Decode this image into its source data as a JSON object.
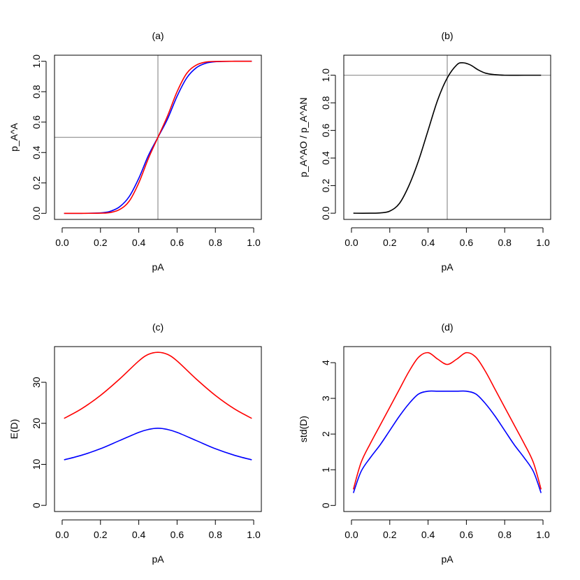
{
  "chart_data": [
    {
      "panel": "a",
      "type": "line",
      "title": "(a)",
      "xlabel": "pA",
      "ylabel": "p_A^A",
      "xlim": [
        -0.04,
        1.04
      ],
      "ylim": [
        -0.04,
        1.04
      ],
      "xticks": [
        "0.0",
        "0.2",
        "0.4",
        "0.6",
        "0.8",
        "1.0"
      ],
      "yticks": [
        "0.0",
        "0.2",
        "0.4",
        "0.6",
        "0.8",
        "1.0"
      ],
      "ref_lines": {
        "v": 0.5,
        "h": 0.5,
        "color": "#999999"
      },
      "series": [
        {
          "color": "#0000ff",
          "x": [
            0.01,
            0.1,
            0.2,
            0.25,
            0.3,
            0.35,
            0.4,
            0.45,
            0.5,
            0.55,
            0.6,
            0.65,
            0.7,
            0.75,
            0.8,
            0.9,
            0.99
          ],
          "y": [
            0.0,
            0.0,
            0.003,
            0.013,
            0.043,
            0.11,
            0.23,
            0.38,
            0.5,
            0.62,
            0.77,
            0.89,
            0.957,
            0.987,
            0.997,
            1.0,
            1.0
          ]
        },
        {
          "color": "#ff0000",
          "x": [
            0.01,
            0.1,
            0.2,
            0.25,
            0.3,
            0.35,
            0.4,
            0.45,
            0.5,
            0.55,
            0.6,
            0.65,
            0.7,
            0.75,
            0.8,
            0.9,
            0.99
          ],
          "y": [
            0.0,
            0.0,
            0.001,
            0.005,
            0.025,
            0.08,
            0.2,
            0.36,
            0.5,
            0.64,
            0.8,
            0.92,
            0.975,
            0.995,
            0.999,
            1.0,
            1.0
          ]
        }
      ]
    },
    {
      "panel": "b",
      "type": "line",
      "title": "(b)",
      "xlabel": "pA",
      "ylabel": "p_A^AO / p_A^AN",
      "xlim": [
        -0.04,
        1.04
      ],
      "ylim": [
        -0.045,
        1.145
      ],
      "xticks": [
        "0.0",
        "0.2",
        "0.4",
        "0.6",
        "0.8",
        "1.0"
      ],
      "yticks": [
        "0.0",
        "0.2",
        "0.4",
        "0.6",
        "0.8",
        "1.0"
      ],
      "ref_lines": {
        "v": 0.5,
        "h": 1.0,
        "color": "#999999"
      },
      "series": [
        {
          "color": "#000000",
          "x": [
            0.01,
            0.1,
            0.15,
            0.2,
            0.25,
            0.3,
            0.35,
            0.4,
            0.45,
            0.5,
            0.55,
            0.58,
            0.62,
            0.66,
            0.7,
            0.75,
            0.8,
            0.9,
            0.99
          ],
          "y": [
            0.0,
            0.0,
            0.002,
            0.015,
            0.07,
            0.2,
            0.38,
            0.6,
            0.82,
            0.98,
            1.075,
            1.09,
            1.075,
            1.04,
            1.015,
            1.004,
            1.0,
            1.0,
            1.0
          ]
        }
      ]
    },
    {
      "panel": "c",
      "type": "line",
      "title": "(c)",
      "xlabel": "pA",
      "ylabel": "E(D)",
      "xlim": [
        -0.04,
        1.04
      ],
      "ylim": [
        -1.5,
        38.7
      ],
      "xticks": [
        "0.0",
        "0.2",
        "0.4",
        "0.6",
        "0.8",
        "1.0"
      ],
      "yticks": [
        "0",
        "10",
        "20",
        "30"
      ],
      "series": [
        {
          "color": "#ff0000",
          "x": [
            0.01,
            0.1,
            0.2,
            0.3,
            0.4,
            0.45,
            0.5,
            0.55,
            0.6,
            0.7,
            0.8,
            0.9,
            0.99
          ],
          "y": [
            21.2,
            23.5,
            26.8,
            30.8,
            35.2,
            36.8,
            37.3,
            36.8,
            35.2,
            30.8,
            26.8,
            23.5,
            21.2
          ]
        },
        {
          "color": "#0000ff",
          "x": [
            0.01,
            0.1,
            0.2,
            0.3,
            0.4,
            0.45,
            0.5,
            0.55,
            0.6,
            0.7,
            0.8,
            0.9,
            0.99
          ],
          "y": [
            11.1,
            12.2,
            13.8,
            15.8,
            17.8,
            18.5,
            18.8,
            18.5,
            17.8,
            15.8,
            13.8,
            12.2,
            11.1
          ]
        }
      ]
    },
    {
      "panel": "d",
      "type": "line",
      "title": "(d)",
      "xlabel": "pA",
      "ylabel": "std(D)",
      "xlim": [
        -0.04,
        1.04
      ],
      "ylim": [
        -0.17,
        4.45
      ],
      "xticks": [
        "0.0",
        "0.2",
        "0.4",
        "0.6",
        "0.8",
        "1.0"
      ],
      "yticks": [
        "0",
        "1",
        "2",
        "3",
        "4"
      ],
      "series": [
        {
          "color": "#ff0000",
          "x": [
            0.01,
            0.05,
            0.1,
            0.15,
            0.2,
            0.25,
            0.3,
            0.35,
            0.4,
            0.45,
            0.5,
            0.55,
            0.6,
            0.65,
            0.7,
            0.75,
            0.8,
            0.85,
            0.9,
            0.95,
            0.99
          ],
          "y": [
            0.45,
            1.2,
            1.75,
            2.25,
            2.75,
            3.25,
            3.75,
            4.15,
            4.28,
            4.1,
            3.95,
            4.1,
            4.28,
            4.15,
            3.75,
            3.25,
            2.75,
            2.25,
            1.75,
            1.2,
            0.45
          ]
        },
        {
          "color": "#0000ff",
          "x": [
            0.01,
            0.05,
            0.1,
            0.15,
            0.2,
            0.25,
            0.3,
            0.35,
            0.4,
            0.45,
            0.5,
            0.55,
            0.6,
            0.65,
            0.7,
            0.75,
            0.8,
            0.85,
            0.9,
            0.95,
            0.99
          ],
          "y": [
            0.35,
            0.95,
            1.35,
            1.7,
            2.1,
            2.5,
            2.85,
            3.12,
            3.2,
            3.2,
            3.2,
            3.2,
            3.2,
            3.12,
            2.85,
            2.5,
            2.1,
            1.7,
            1.35,
            0.95,
            0.35
          ]
        }
      ]
    }
  ]
}
